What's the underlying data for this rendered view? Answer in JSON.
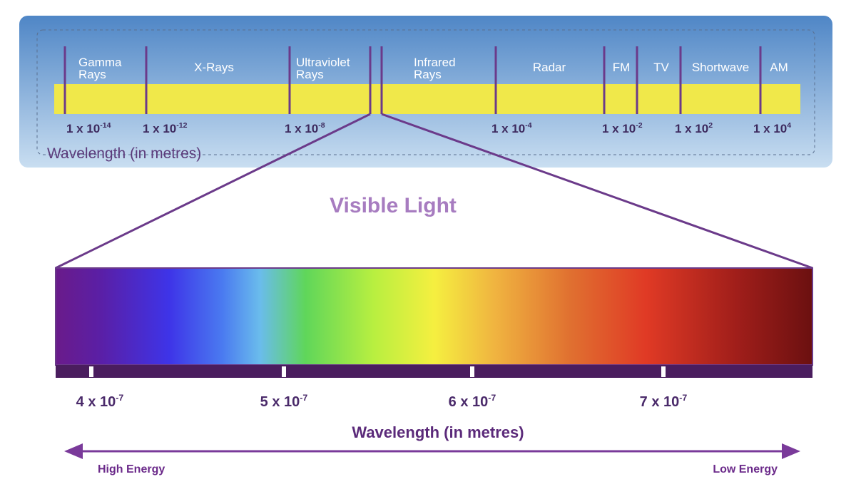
{
  "electromagnetic_spectrum": {
    "bands": [
      {
        "lines": [
          "Gamma",
          "Rays"
        ]
      },
      {
        "lines": [
          "X-Rays"
        ]
      },
      {
        "lines": [
          "Ultraviolet",
          "Rays"
        ]
      },
      {
        "lines": [
          "Infrared",
          "Rays"
        ]
      },
      {
        "lines": [
          "Radar"
        ]
      },
      {
        "lines": [
          "FM"
        ]
      },
      {
        "lines": [
          "TV"
        ]
      },
      {
        "lines": [
          "Shortwave"
        ]
      },
      {
        "lines": [
          "AM"
        ]
      }
    ],
    "wavelengths": [
      {
        "base": "1 x 10",
        "exp": "-14"
      },
      {
        "base": "1 x 10",
        "exp": "-12"
      },
      {
        "base": "1 x 10",
        "exp": "-8"
      },
      {
        "base": "1 x 10",
        "exp": "-4"
      },
      {
        "base": "1 x 10",
        "exp": "-2"
      },
      {
        "base": "1 x 10",
        "exp": "2"
      },
      {
        "base": "1 x 10",
        "exp": "4"
      }
    ],
    "axis_label": "Wavelength (in metres)"
  },
  "visible_light": {
    "title": "Visible Light",
    "ticks": [
      {
        "base": "4 x 10",
        "exp": "-7"
      },
      {
        "base": "5 x 10",
        "exp": "-7"
      },
      {
        "base": "6 x 10",
        "exp": "-7"
      },
      {
        "base": "7 x 10",
        "exp": "-7"
      }
    ],
    "axis_label": "Wavelength (in metres)",
    "energy": {
      "high": "High Energy",
      "low": "Low Energy"
    }
  }
}
